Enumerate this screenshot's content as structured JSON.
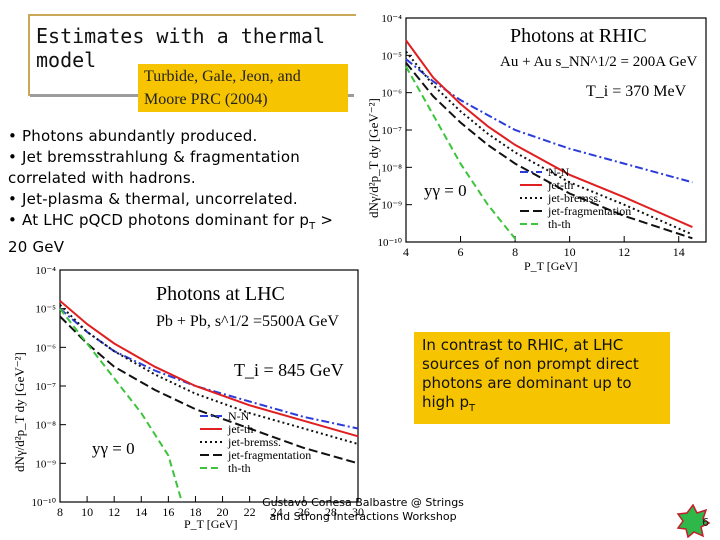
{
  "slide": {
    "title": "Estimates with a thermal model",
    "reference": "Turbide, Gale, Jeon, and Moore PRC (2004)",
    "bullets": [
      "• Photons abundantly produced.",
      "• Jet bremsstrahlung & fragmentation correlated with hadrons.",
      "• Jet-plasma & thermal, uncorrelated.",
      "• At LHC pQCD photons dominant for p",
      "T",
      "> 20 GeV"
    ],
    "contrast_note": "In contrast to RHIC, at LHC sources of non prompt direct photons are dominant up to high p",
    "contrast_sub": "T",
    "footer": "Gustavo Conesa Balbastre @ Strings and Strong Interactions Workshop",
    "page_number": "6"
  },
  "chart_data": [
    {
      "type": "line",
      "title": "Photons at RHIC",
      "subtitle": "Au + Au  s_NN^1/2 = 200A GeV",
      "temperature": "T_i = 370 MeV",
      "rapidity": "yγ = 0",
      "xlabel": "P_T [GeV]",
      "ylabel": "dNγ/d²p_T dy [GeV⁻²]",
      "xlim": [
        4,
        15
      ],
      "ylim_log10": [
        -10,
        -4
      ],
      "log_y": true,
      "x_ticks": [
        "4",
        "6",
        "8",
        "10",
        "12",
        "14"
      ],
      "y_ticks": [
        "10⁻⁴",
        "10⁻⁵",
        "10⁻⁶",
        "10⁻⁷",
        "10⁻⁸",
        "10⁻⁹",
        "10⁻¹⁰"
      ],
      "legend_position": "bottom-right",
      "series": [
        {
          "name": "N-N",
          "color": "#2c3cd8",
          "dash": "8,3,2,3",
          "x": [
            4,
            5,
            6,
            7,
            8,
            10,
            12,
            14.5
          ],
          "log10_y": [
            -5.1,
            -5.7,
            -6.2,
            -6.6,
            -7.0,
            -7.5,
            -7.9,
            -8.4
          ]
        },
        {
          "name": "jet-th",
          "color": "#e02020",
          "dash": "",
          "x": [
            4,
            5,
            6,
            7,
            8,
            10,
            12,
            14.5
          ],
          "log10_y": [
            -4.6,
            -5.6,
            -6.3,
            -6.9,
            -7.4,
            -8.2,
            -8.8,
            -9.6
          ]
        },
        {
          "name": "jet-bremss.",
          "color": "#111111",
          "dash": "2,3",
          "x": [
            4,
            5,
            6,
            7,
            8,
            10,
            12,
            14.5
          ],
          "log10_y": [
            -4.9,
            -5.8,
            -6.5,
            -7.1,
            -7.6,
            -8.4,
            -9.0,
            -9.8
          ]
        },
        {
          "name": "jet-fragmentation",
          "color": "#111111",
          "dash": "9,4",
          "x": [
            4,
            5,
            6,
            7,
            8,
            10,
            12,
            14.5
          ],
          "log10_y": [
            -5.2,
            -6.1,
            -6.8,
            -7.4,
            -7.9,
            -8.7,
            -9.3,
            -9.9
          ]
        },
        {
          "name": "th-th",
          "color": "#3cc43c",
          "dash": "7,4",
          "x": [
            4,
            5,
            6,
            7,
            8.1
          ],
          "log10_y": [
            -5.3,
            -6.6,
            -7.9,
            -9.0,
            -10.0
          ]
        }
      ]
    },
    {
      "type": "line",
      "title": "Photons at LHC",
      "subtitle": "Pb + Pb, s^1/2 =5500A GeV",
      "temperature": "T_i = 845 GeV",
      "rapidity": "yγ = 0",
      "xlabel": "P_T [GeV]",
      "ylabel": "dNγ/d²p_T dy [GeV⁻²]",
      "xlim": [
        8,
        30
      ],
      "ylim_log10": [
        -10,
        -4
      ],
      "log_y": true,
      "x_ticks": [
        "8",
        "10",
        "12",
        "14",
        "16",
        "18",
        "20",
        "22",
        "24",
        "26",
        "28",
        "30"
      ],
      "y_ticks": [
        "10⁻⁴",
        "10⁻⁵",
        "10⁻⁶",
        "10⁻⁷",
        "10⁻⁸",
        "10⁻⁹",
        "10⁻¹⁰"
      ],
      "legend_position": "bottom-right",
      "series": [
        {
          "name": "N-N",
          "color": "#2c3cd8",
          "dash": "8,3,2,3",
          "x": [
            8,
            10,
            12,
            15,
            18,
            22,
            26,
            30
          ],
          "log10_y": [
            -5.0,
            -5.6,
            -6.1,
            -6.6,
            -7.0,
            -7.4,
            -7.8,
            -8.1
          ]
        },
        {
          "name": "jet-th",
          "color": "#e02020",
          "dash": "",
          "x": [
            8,
            10,
            12,
            15,
            18,
            22,
            26,
            30
          ],
          "log10_y": [
            -4.8,
            -5.4,
            -5.9,
            -6.5,
            -7.0,
            -7.5,
            -7.9,
            -8.3
          ]
        },
        {
          "name": "jet-bremss.",
          "color": "#111111",
          "dash": "2,3",
          "x": [
            8,
            10,
            12,
            15,
            18,
            22,
            26,
            30
          ],
          "log10_y": [
            -4.9,
            -5.6,
            -6.1,
            -6.7,
            -7.2,
            -7.7,
            -8.1,
            -8.5
          ]
        },
        {
          "name": "jet-fragmentation",
          "color": "#111111",
          "dash": "9,4",
          "x": [
            8,
            10,
            12,
            15,
            18,
            22,
            26,
            30
          ],
          "log10_y": [
            -5.2,
            -5.9,
            -6.5,
            -7.1,
            -7.6,
            -8.1,
            -8.6,
            -9.0
          ]
        },
        {
          "name": "th-th",
          "color": "#3cc43c",
          "dash": "7,4",
          "x": [
            8,
            10,
            12,
            14,
            16,
            17
          ],
          "log10_y": [
            -5.0,
            -5.9,
            -6.8,
            -7.7,
            -8.8,
            -10.0
          ]
        }
      ]
    }
  ]
}
